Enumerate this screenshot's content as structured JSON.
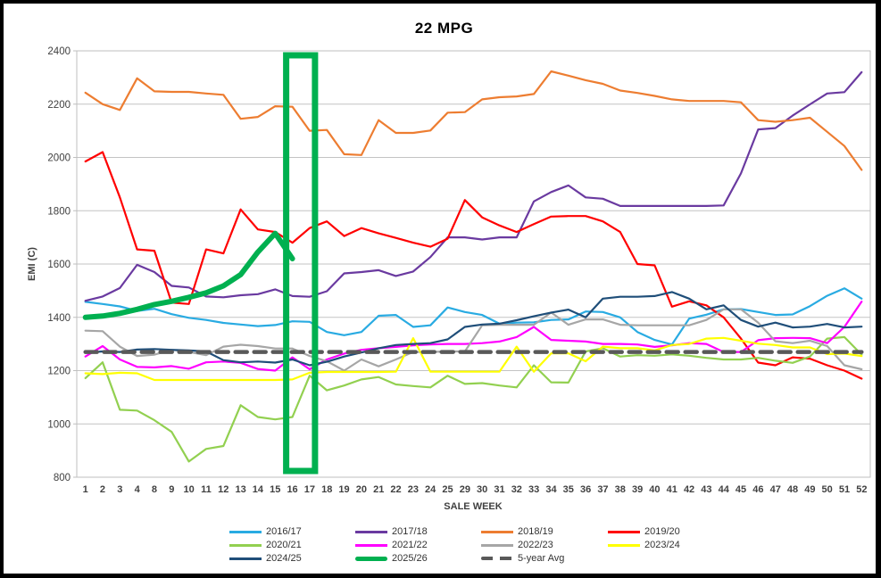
{
  "window": {
    "title": "22 MPG"
  },
  "chart_data": {
    "type": "line",
    "title": "22 MPG",
    "xlabel": "SALE WEEK",
    "ylabel": "EMI (C)",
    "ylim": [
      800,
      2400
    ],
    "ytick_step": 200,
    "yticks": [
      800,
      1000,
      1200,
      1400,
      1600,
      1800,
      2000,
      2200,
      2400
    ],
    "grid": "horizontal",
    "legend_position": "bottom",
    "categories": [
      1,
      2,
      3,
      4,
      8,
      9,
      10,
      11,
      12,
      13,
      14,
      15,
      16,
      17,
      18,
      19,
      20,
      21,
      22,
      23,
      24,
      25,
      29,
      30,
      31,
      32,
      33,
      34,
      35,
      36,
      37,
      38,
      39,
      40,
      41,
      42,
      43,
      44,
      45,
      46,
      47,
      48,
      49,
      50,
      51,
      52
    ],
    "highlight": {
      "type": "rect",
      "from_week": 16,
      "to_week": 17,
      "color": "#00B050"
    },
    "series": [
      {
        "name": "2016/17",
        "color": "#29ABE2",
        "width": 2.2,
        "values": [
          1458,
          1450,
          1441,
          1424,
          1432,
          1412,
          1398,
          1390,
          1379,
          1373,
          1367,
          1371,
          1385,
          1383,
          1345,
          1333,
          1345,
          1406,
          1409,
          1364,
          1370,
          1437,
          1420,
          1409,
          1376,
          1380,
          1381,
          1390,
          1392,
          1422,
          1420,
          1400,
          1345,
          1315,
          1298,
          1395,
          1410,
          1430,
          1431,
          1420,
          1409,
          1411,
          1442,
          1481,
          1509,
          1470
        ]
      },
      {
        "name": "2017/18",
        "color": "#6A3AA0",
        "width": 2.2,
        "values": [
          1462,
          1478,
          1510,
          1597,
          1570,
          1518,
          1512,
          1478,
          1475,
          1483,
          1487,
          1505,
          1480,
          1477,
          1498,
          1565,
          1570,
          1577,
          1555,
          1572,
          1626,
          1700,
          1700,
          1692,
          1700,
          1700,
          1835,
          1870,
          1895,
          1850,
          1845,
          1818,
          1818,
          1818,
          1818,
          1818,
          1818,
          1820,
          1940,
          2105,
          2110,
          2157,
          2199,
          2240,
          2245,
          2320
        ]
      },
      {
        "name": "2018/19",
        "color": "#ED7D31",
        "width": 2.2,
        "values": [
          2243,
          2200,
          2178,
          2297,
          2248,
          2246,
          2246,
          2240,
          2235,
          2145,
          2152,
          2192,
          2190,
          2100,
          2103,
          2012,
          2009,
          2140,
          2092,
          2092,
          2101,
          2168,
          2170,
          2218,
          2226,
          2229,
          2238,
          2323,
          2307,
          2290,
          2276,
          2251,
          2242,
          2231,
          2218,
          2212,
          2212,
          2212,
          2207,
          2140,
          2134,
          2140,
          2149,
          2096,
          2043,
          1953
        ]
      },
      {
        "name": "2019/20",
        "color": "#FF0000",
        "width": 2.2,
        "values": [
          1985,
          2020,
          1850,
          1655,
          1650,
          1455,
          1450,
          1655,
          1640,
          1805,
          1730,
          1720,
          1680,
          1735,
          1760,
          1705,
          1735,
          1715,
          1698,
          1680,
          1665,
          1695,
          1840,
          1775,
          1745,
          1720,
          1750,
          1778,
          1780,
          1780,
          1760,
          1720,
          1600,
          1595,
          1440,
          1460,
          1445,
          1400,
          1320,
          1230,
          1220,
          1250,
          1245,
          1220,
          1200,
          1170
        ]
      },
      {
        "name": "2020/21",
        "color": "#92D050",
        "width": 2.2,
        "values": [
          1172,
          1231,
          1053,
          1050,
          1014,
          970,
          859,
          906,
          917,
          1070,
          1026,
          1017,
          1026,
          1181,
          1126,
          1144,
          1167,
          1176,
          1148,
          1142,
          1137,
          1181,
          1150,
          1153,
          1144,
          1137,
          1220,
          1156,
          1155,
          1272,
          1284,
          1253,
          1258,
          1256,
          1261,
          1256,
          1248,
          1242,
          1242,
          1248,
          1237,
          1229,
          1253,
          1320,
          1326,
          1260
        ]
      },
      {
        "name": "2021/22",
        "color": "#FF00FF",
        "width": 2.2,
        "values": [
          1253,
          1292,
          1242,
          1214,
          1212,
          1217,
          1207,
          1231,
          1234,
          1229,
          1206,
          1200,
          1250,
          1205,
          1242,
          1264,
          1278,
          1284,
          1289,
          1295,
          1298,
          1300,
          1300,
          1303,
          1309,
          1326,
          1364,
          1315,
          1312,
          1309,
          1300,
          1300,
          1298,
          1289,
          1295,
          1303,
          1300,
          1270,
          1270,
          1314,
          1322,
          1323,
          1322,
          1303,
          1364,
          1459
        ]
      },
      {
        "name": "2022/23",
        "color": "#A6A6A6",
        "width": 2.2,
        "values": [
          1350,
          1348,
          1290,
          1255,
          1260,
          1278,
          1270,
          1258,
          1290,
          1297,
          1292,
          1283,
          1283,
          1255,
          1235,
          1200,
          1242,
          1216,
          1242,
          1270,
          1270,
          1272,
          1272,
          1370,
          1372,
          1372,
          1372,
          1418,
          1372,
          1392,
          1392,
          1372,
          1370,
          1370,
          1370,
          1370,
          1390,
          1430,
          1430,
          1380,
          1310,
          1303,
          1312,
          1292,
          1220,
          1205
        ]
      },
      {
        "name": "2023/24",
        "color": "#FFFF00",
        "width": 2.2,
        "values": [
          1190,
          1187,
          1192,
          1190,
          1165,
          1165,
          1165,
          1165,
          1165,
          1165,
          1165,
          1165,
          1167,
          1192,
          1195,
          1195,
          1195,
          1195,
          1196,
          1322,
          1196,
          1196,
          1196,
          1196,
          1196,
          1290,
          1196,
          1265,
          1265,
          1235,
          1290,
          1284,
          1284,
          1276,
          1296,
          1300,
          1320,
          1323,
          1312,
          1301,
          1296,
          1287,
          1287,
          1262,
          1264,
          1255
        ]
      },
      {
        "name": "2024/25",
        "color": "#1F4E79",
        "width": 2.2,
        "values": [
          1267,
          1272,
          1270,
          1279,
          1281,
          1278,
          1276,
          1272,
          1239,
          1231,
          1234,
          1230,
          1242,
          1220,
          1233,
          1253,
          1268,
          1284,
          1296,
          1300,
          1303,
          1317,
          1364,
          1373,
          1376,
          1389,
          1404,
          1418,
          1429,
          1400,
          1470,
          1477,
          1477,
          1480,
          1495,
          1470,
          1430,
          1445,
          1390,
          1365,
          1380,
          1362,
          1365,
          1375,
          1362,
          1365
        ]
      },
      {
        "name": "2025/26",
        "color": "#00B050",
        "width": 6,
        "values": [
          1400,
          1405,
          1415,
          1430,
          1448,
          1460,
          1475,
          1492,
          1518,
          1560,
          1645,
          1715,
          1620,
          null,
          null,
          null,
          null,
          null,
          null,
          null,
          null,
          null,
          null,
          null,
          null,
          null,
          null,
          null,
          null,
          null,
          null,
          null,
          null,
          null,
          null,
          null,
          null,
          null,
          null,
          null,
          null,
          null,
          null,
          null,
          null,
          null
        ]
      },
      {
        "name": "5-year Avg",
        "color": "#595959",
        "width": 4.5,
        "dash": "13 8",
        "values": [
          1270,
          1270,
          1270,
          1270,
          1270,
          1270,
          1270,
          1270,
          1270,
          1270,
          1270,
          1270,
          1270,
          1270,
          1270,
          1270,
          1270,
          1270,
          1270,
          1270,
          1270,
          1270,
          1270,
          1270,
          1270,
          1270,
          1270,
          1270,
          1270,
          1270,
          1270,
          1270,
          1270,
          1270,
          1270,
          1270,
          1270,
          1270,
          1270,
          1270,
          1270,
          1270,
          1270,
          1270,
          1270,
          1270
        ]
      }
    ]
  }
}
